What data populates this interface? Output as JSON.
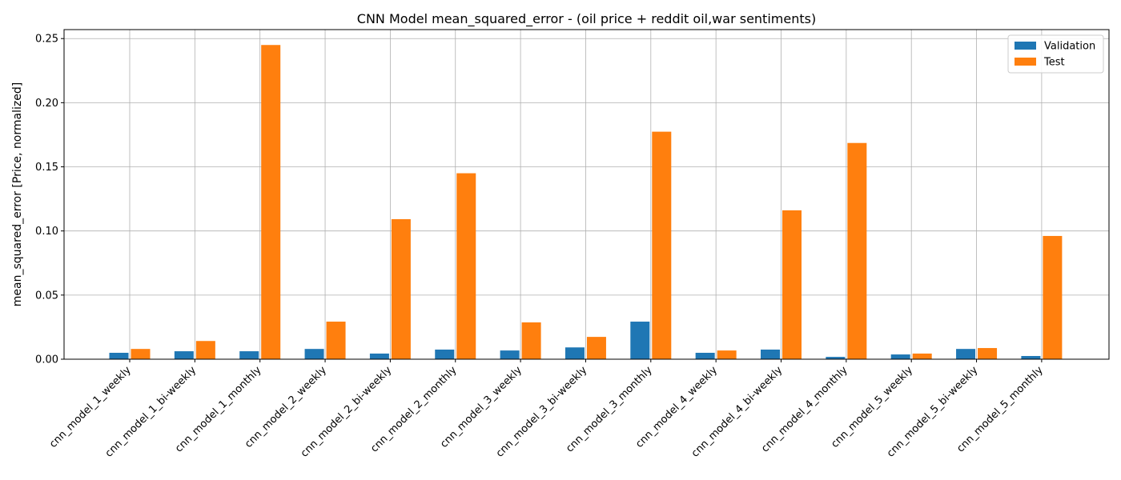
{
  "chart_data": {
    "type": "bar",
    "title": "CNN Model mean_squared_error - (oil price + reddit oil,war sentiments)",
    "xlabel": "",
    "ylabel": "mean_squared_error [Price, normalized]",
    "ylim": [
      0,
      0.257
    ],
    "yticks": [
      0.0,
      0.05,
      0.1,
      0.15,
      0.2,
      0.25
    ],
    "ytick_labels": [
      "0.00",
      "0.05",
      "0.10",
      "0.15",
      "0.20",
      "0.25"
    ],
    "grid": true,
    "legend_position": "top-right",
    "categories": [
      "cnn_model_1_weekly",
      "cnn_model_1_bi-weekly",
      "cnn_model_1_monthly",
      "cnn_model_2_weekly",
      "cnn_model_2_bi-weekly",
      "cnn_model_2_monthly",
      "cnn_model_3_weekly",
      "cnn_model_3_bi-weekly",
      "cnn_model_3_monthly",
      "cnn_model_4_weekly",
      "cnn_model_4_bi-weekly",
      "cnn_model_4_monthly",
      "cnn_model_5_weekly",
      "cnn_model_5_bi-weekly",
      "cnn_model_5_monthly"
    ],
    "series": [
      {
        "name": "Validation",
        "color": "#1f77b4",
        "values": [
          0.005,
          0.0062,
          0.0062,
          0.008,
          0.0044,
          0.0075,
          0.0068,
          0.0092,
          0.0293,
          0.005,
          0.0075,
          0.0018,
          0.0037,
          0.008,
          0.0025
        ]
      },
      {
        "name": "Test",
        "color": "#ff7f0e",
        "values": [
          0.008,
          0.0142,
          0.245,
          0.0293,
          0.1092,
          0.145,
          0.0287,
          0.0174,
          0.1774,
          0.0068,
          0.1161,
          0.1686,
          0.0044,
          0.0087,
          0.0961
        ]
      }
    ]
  }
}
